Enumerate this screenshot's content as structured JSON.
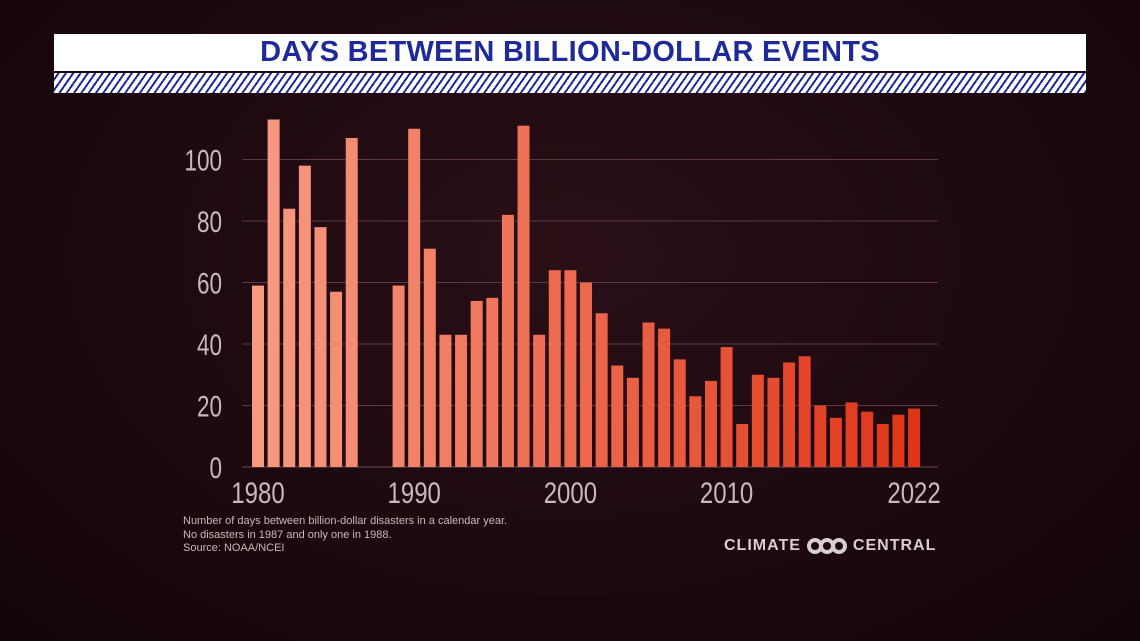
{
  "chart_data": {
    "type": "bar",
    "title": "DAYS BETWEEN BILLION-DOLLAR EVENTS",
    "xlabel": "",
    "ylabel": "",
    "ylim": [
      0,
      115
    ],
    "yticks": [
      0,
      20,
      40,
      60,
      80,
      100
    ],
    "xtick_labels": [
      "1980",
      "1990",
      "2000",
      "2010",
      "2022"
    ],
    "grid": true,
    "categories": [
      1980,
      1981,
      1982,
      1983,
      1984,
      1985,
      1986,
      1987,
      1988,
      1989,
      1990,
      1991,
      1992,
      1993,
      1994,
      1995,
      1996,
      1997,
      1998,
      1999,
      2000,
      2001,
      2002,
      2003,
      2004,
      2005,
      2006,
      2007,
      2008,
      2009,
      2010,
      2011,
      2012,
      2013,
      2014,
      2015,
      2016,
      2017,
      2018,
      2019,
      2020,
      2021,
      2022
    ],
    "values": [
      59,
      113,
      84,
      98,
      78,
      57,
      107,
      null,
      null,
      59,
      110,
      71,
      43,
      43,
      54,
      55,
      82,
      111,
      43,
      64,
      64,
      60,
      50,
      33,
      29,
      47,
      45,
      35,
      23,
      28,
      39,
      14,
      30,
      29,
      34,
      36,
      20,
      16,
      21,
      18,
      14,
      17,
      19
    ],
    "colors": {
      "start": "#f79a82",
      "end": "#df3518",
      "grid": "#5a3a44",
      "axis_text": "#c8b8bd"
    }
  },
  "notes": [
    "Number of days between billion-dollar disasters in a calendar year.",
    "No disasters in 1987 and only one in 1988.",
    "Source: NOAA/NCEI"
  ],
  "logo": {
    "left": "CLIMATE",
    "right": "CENTRAL"
  }
}
